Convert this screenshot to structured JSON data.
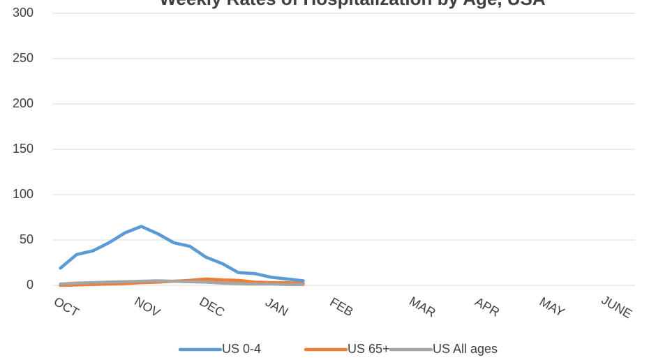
{
  "chart_data": {
    "type": "line",
    "title": "Weekly Rates of Hospitalization by Age, USA",
    "categories": [
      "OCT",
      null,
      null,
      null,
      null,
      "NOV",
      null,
      null,
      null,
      "DEC",
      null,
      null,
      null,
      "JAN",
      null,
      null,
      null,
      "FEB",
      null,
      null,
      null,
      null,
      "MAR",
      null,
      null,
      null,
      "APR",
      null,
      null,
      null,
      "MAY",
      null,
      null,
      null,
      "JUNE",
      null
    ],
    "series": [
      {
        "name": "US 0-4",
        "color": "#5b9bd5",
        "values": [
          19,
          34,
          38,
          47,
          58,
          65,
          57,
          47,
          43,
          31,
          24,
          14,
          13,
          9,
          7,
          5,
          null,
          null,
          null,
          null,
          null,
          null,
          null,
          null,
          null,
          null,
          null,
          null,
          null,
          null,
          null,
          null,
          null,
          null,
          null,
          null
        ]
      },
      {
        "name": "US 65+",
        "color": "#ed7d31",
        "values": [
          0,
          0.5,
          1,
          1.5,
          2,
          3,
          3.5,
          4.5,
          5.5,
          7,
          6,
          5.5,
          3.5,
          3,
          3,
          2,
          null,
          null,
          null,
          null,
          null,
          null,
          null,
          null,
          null,
          null,
          null,
          null,
          null,
          null,
          null,
          null,
          null,
          null,
          null,
          null
        ]
      },
      {
        "name": "US All ages",
        "color": "#a5a5a5",
        "values": [
          1.5,
          2.5,
          3,
          3.5,
          4,
          4.5,
          5,
          4.5,
          4,
          3.5,
          2.5,
          2,
          1.5,
          1.5,
          1,
          1,
          null,
          null,
          null,
          null,
          null,
          null,
          null,
          null,
          null,
          null,
          null,
          null,
          null,
          null,
          null,
          null,
          null,
          null,
          null,
          null
        ]
      }
    ],
    "ylim": [
      0,
      300
    ],
    "yticks": [
      0,
      50,
      100,
      150,
      200,
      250,
      300
    ],
    "grid": true,
    "legend": "bottom"
  }
}
